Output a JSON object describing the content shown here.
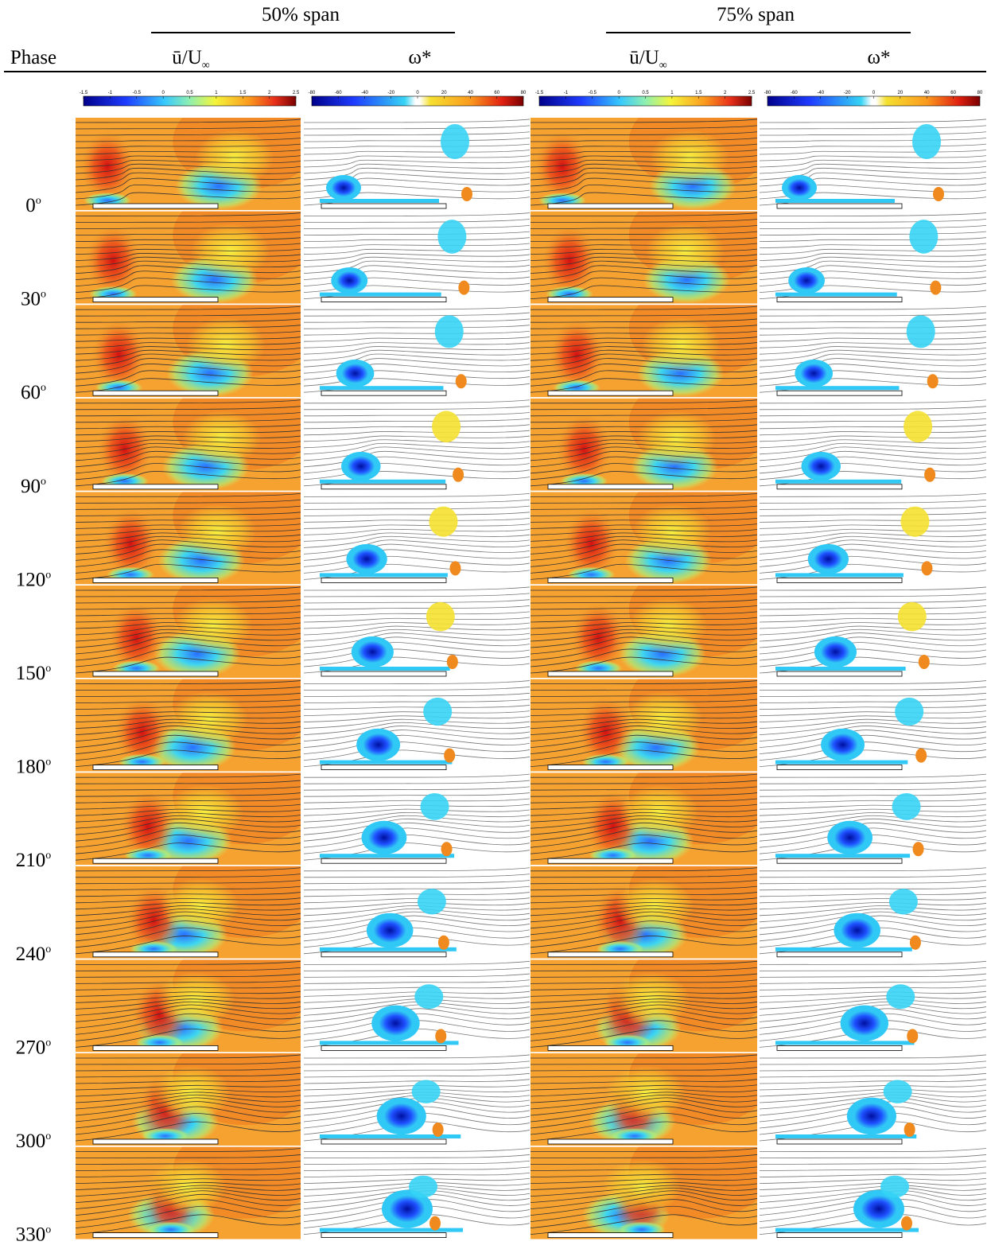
{
  "header": {
    "phase": "Phase",
    "groups": [
      "50% span",
      "75% span"
    ],
    "columns": [
      {
        "main": "ū/U",
        "sub": "∞"
      },
      {
        "main": "ω*",
        "sub": ""
      },
      {
        "main": "ū/U",
        "sub": "∞"
      },
      {
        "main": "ω*",
        "sub": ""
      }
    ]
  },
  "colorbars": [
    {
      "lim": [
        -1.5,
        2.5
      ],
      "ticks": [
        -1.5,
        -1,
        -0.5,
        0,
        0.5,
        1,
        1.5,
        2,
        2.5
      ]
    },
    {
      "lim": [
        -80,
        80
      ],
      "ticks": [
        -80,
        -60,
        -40,
        -20,
        0,
        20,
        40,
        60,
        80
      ]
    }
  ],
  "phases": [
    {
      "angle": "0",
      "mark": "o"
    },
    {
      "angle": "30",
      "mark": "o"
    },
    {
      "angle": "60",
      "mark": "o"
    },
    {
      "angle": "90",
      "mark": "o"
    },
    {
      "angle": "120",
      "mark": "o"
    },
    {
      "angle": "150",
      "mark": "o"
    },
    {
      "angle": "180",
      "mark": "o"
    },
    {
      "angle": "210",
      "mark": "o"
    },
    {
      "angle": "240",
      "mark": "o"
    },
    {
      "angle": "270",
      "mark": "o"
    },
    {
      "angle": "300",
      "mark": "o"
    },
    {
      "angle": "330",
      "mark": "o"
    }
  ]
}
